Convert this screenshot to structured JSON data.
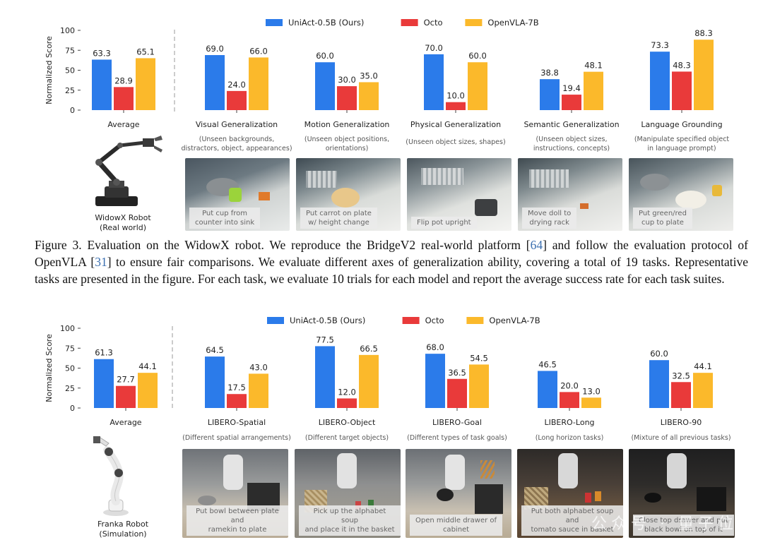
{
  "top": {
    "chart_data": {
      "type": "bar",
      "ylabel": "Normalized Score",
      "ylim": [
        0,
        100
      ],
      "yticks": [
        0,
        25,
        50,
        75,
        100
      ],
      "legend_position": "top-center",
      "series": [
        {
          "name": "UniAct-0.5B (Ours)",
          "color": "#2b7bea",
          "values": [
            63.3,
            69.0,
            60.0,
            70.0,
            38.8,
            73.3
          ]
        },
        {
          "name": "Octo",
          "color": "#e93a3a",
          "values": [
            28.9,
            24.0,
            30.0,
            10.0,
            19.4,
            48.3
          ]
        },
        {
          "name": "OpenVLA-7B",
          "color": "#fbb92b",
          "values": [
            65.1,
            66.0,
            35.0,
            60.0,
            48.1,
            88.3
          ]
        }
      ],
      "categories": [
        "Average",
        "Visual Generalization",
        "Motion Generalization",
        "Physical Generalization",
        "Semantic Generalization",
        "Language Grounding"
      ],
      "subtitles": [
        [
          "",
          ""
        ],
        [
          "(Unseen backgrounds,",
          "distractors, object, appearances)"
        ],
        [
          "(Unseen object positions,",
          "orientations)"
        ],
        [
          "(Unseen object sizes,  shapes)",
          ""
        ],
        [
          "(Unseen object sizes,",
          "instructions, concepts)"
        ],
        [
          "(Manipulate specified object",
          "in language prompt)"
        ]
      ]
    },
    "robot_label": [
      "WidowX Robot",
      "(Real world)"
    ],
    "tasks": [
      [
        "Put cup from",
        "counter into sink"
      ],
      [
        "Put carrot on plate",
        "w/ height change"
      ],
      [
        "Flip pot upright",
        ""
      ],
      [
        "Move doll to",
        "drying rack"
      ],
      [
        "Put green/red",
        "cup to plate"
      ]
    ]
  },
  "caption": {
    "p1": "Figure 3.  Evaluation on the WidowX robot.  We reproduce the BridgeV2 real-world platform [",
    "r1": "64",
    "p2": "] and follow the evaluation protocol of OpenVLA [",
    "r2": "31",
    "p3": "] to ensure fair comparisons. We evaluate different axes of generalization ability, covering a total of 19 tasks. Representative tasks are presented in the figure. For each task, we evaluate 10 trials for each model and report the average success rate for each task suites."
  },
  "bottom": {
    "chart_data": {
      "type": "bar",
      "ylabel": "Normalized Score",
      "ylim": [
        0,
        100
      ],
      "yticks": [
        0,
        25,
        50,
        75,
        100
      ],
      "legend_position": "top-center",
      "series": [
        {
          "name": "UniAct-0.5B (Ours)",
          "color": "#2b7bea",
          "values": [
            61.3,
            64.5,
            77.5,
            68.0,
            46.5,
            60.0
          ]
        },
        {
          "name": "Octo",
          "color": "#e93a3a",
          "values": [
            27.7,
            17.5,
            12.0,
            36.5,
            20.0,
            32.5
          ]
        },
        {
          "name": "OpenVLA-7B",
          "color": "#fbb92b",
          "values": [
            44.1,
            43.0,
            66.5,
            54.5,
            13.0,
            44.1
          ]
        }
      ],
      "categories": [
        "Average",
        "LIBERO-Spatial",
        "LIBERO-Object",
        "LIBERO-Goal",
        "LIBERO-Long",
        "LIBERO-90"
      ],
      "subtitles": [
        [
          "",
          ""
        ],
        [
          "(Different spatial arrangements)",
          ""
        ],
        [
          "(Different target objects)",
          ""
        ],
        [
          "(Different types of task goals)",
          ""
        ],
        [
          "(Long horizon tasks)",
          ""
        ],
        [
          "(Mixture of all previous tasks)",
          ""
        ]
      ]
    },
    "robot_label": [
      "Franka Robot",
      "(Simulation)"
    ],
    "tasks": [
      [
        "Put bowl between plate and",
        "ramekin to plate"
      ],
      [
        "Pick up the alphabet soup",
        "and place it in the basket"
      ],
      [
        "Open middle drawer of",
        "cabinet"
      ],
      [
        "Put both alphabet soup and",
        "tomato sauce in basket"
      ],
      [
        "Close top drawer and put",
        "black bowl on top of it"
      ]
    ]
  },
  "watermark": "公众号 · 量子位",
  "icons": {
    "top_robot": "widowx-robot-arm-icon",
    "bottom_robot": "franka-robot-arm-icon"
  }
}
